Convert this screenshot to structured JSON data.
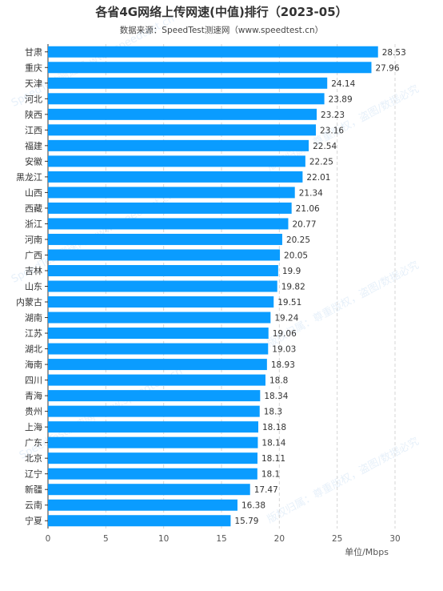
{
  "title": "各省4G网络上传网速(中值)排行（2023-05）",
  "subtitle": "数据来源：SpeedTest测速网（www.speedtest.cn）",
  "watermark": {
    "line1": "SpeedTest测速网-www.speedtest.cn",
    "line2": "版权归属：尊重版权，盗图/数据必究"
  },
  "chart_data": {
    "type": "bar",
    "orientation": "horizontal",
    "categories": [
      "甘肃",
      "重庆",
      "天津",
      "河北",
      "陕西",
      "江西",
      "福建",
      "安徽",
      "黑龙江",
      "山西",
      "西藏",
      "浙江",
      "河南",
      "广西",
      "吉林",
      "山东",
      "内蒙古",
      "湖南",
      "江苏",
      "湖北",
      "海南",
      "四川",
      "青海",
      "贵州",
      "上海",
      "广东",
      "北京",
      "辽宁",
      "新疆",
      "云南",
      "宁夏"
    ],
    "values": [
      28.53,
      27.96,
      24.14,
      23.89,
      23.23,
      23.16,
      22.54,
      22.25,
      22.01,
      21.34,
      21.06,
      20.77,
      20.25,
      20.05,
      19.9,
      19.82,
      19.51,
      19.24,
      19.06,
      19.03,
      18.93,
      18.8,
      18.34,
      18.3,
      18.18,
      18.14,
      18.11,
      18.1,
      17.47,
      16.38,
      15.79
    ],
    "value_labels": [
      "28.53",
      "27.96",
      "24.14",
      "23.89",
      "23.23",
      "23.16",
      "22.54",
      "22.25",
      "22.01",
      "21.34",
      "21.06",
      "20.77",
      "20.25",
      "20.05",
      "19.9",
      "19.82",
      "19.51",
      "19.24",
      "19.06",
      "19.03",
      "18.93",
      "18.8",
      "18.34",
      "18.3",
      "18.18",
      "18.14",
      "18.11",
      "18.1",
      "17.47",
      "16.38",
      "15.79"
    ],
    "xlim": [
      0,
      30
    ],
    "xticks": [
      0,
      5,
      10,
      15,
      20,
      25,
      30
    ],
    "xlabel": "单位/Mbps",
    "grid": true,
    "bar_color": "#0a9cff"
  }
}
